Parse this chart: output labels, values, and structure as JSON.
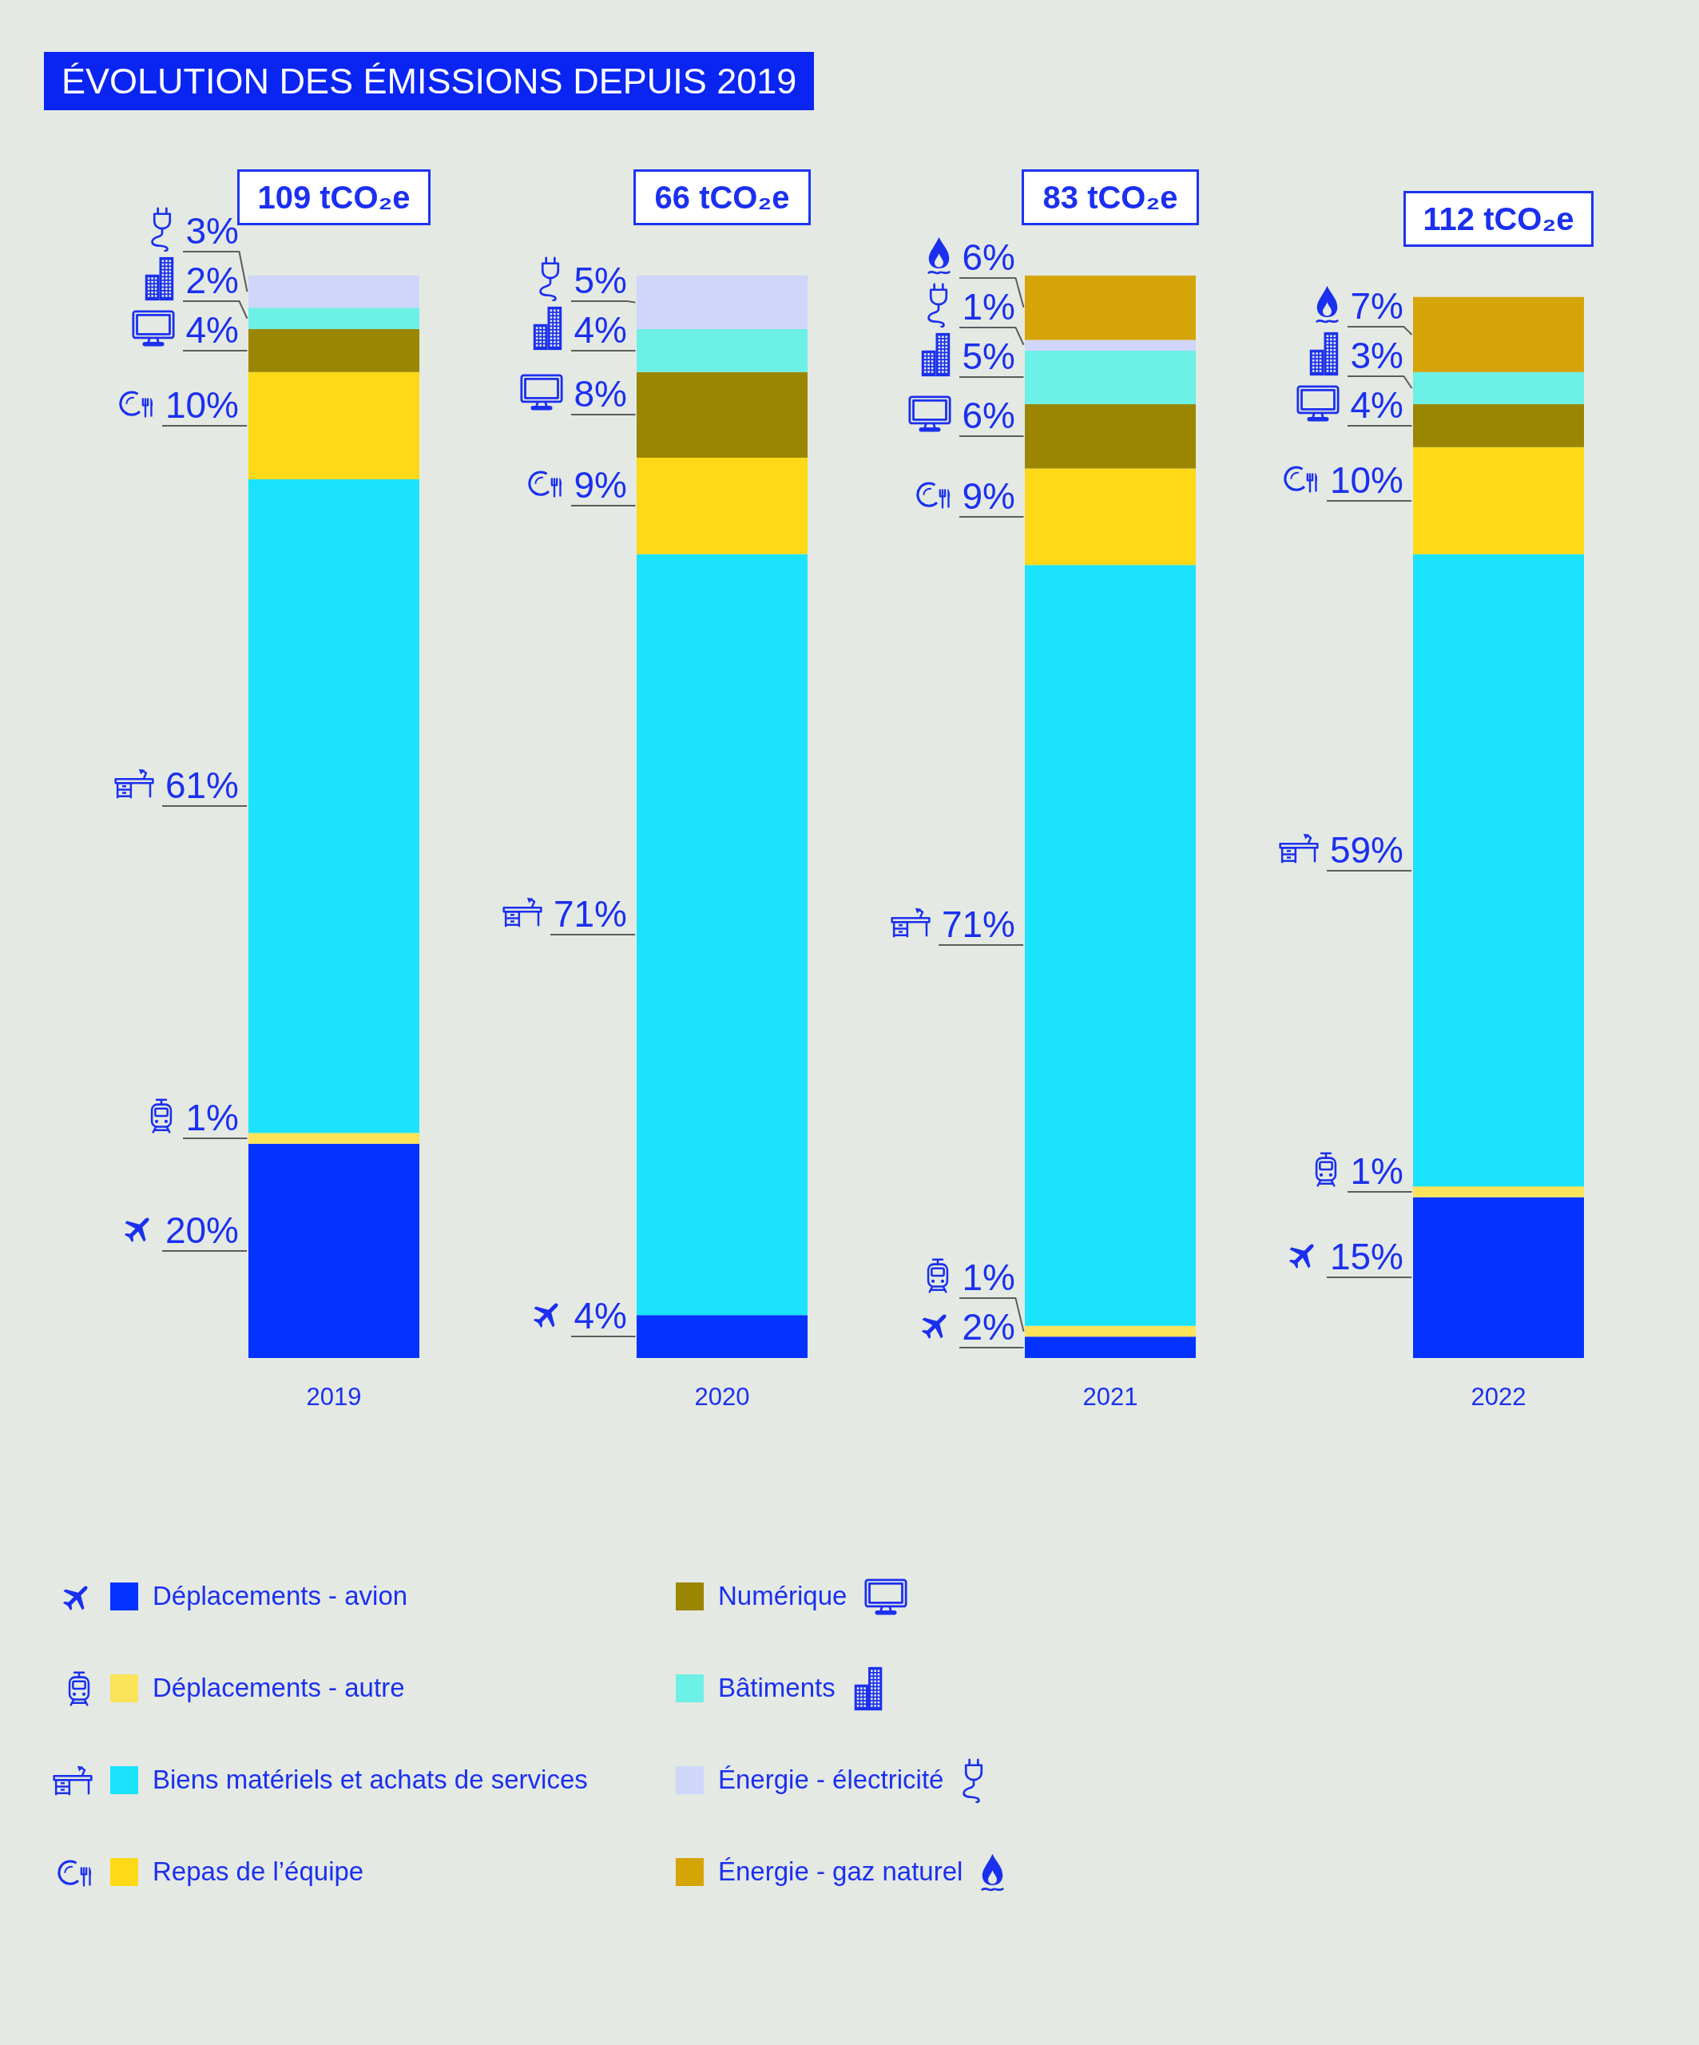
{
  "chart_data": {
    "type": "bar",
    "title": "ÉVOLUTION DES ÉMISSIONS DEPUIS 2019",
    "categories": [
      "2019",
      "2020",
      "2021",
      "2022"
    ],
    "stacked": true,
    "series": [
      {
        "name": "Déplacements - avion",
        "color": "#0433ff",
        "values": [
          20,
          4,
          2,
          15
        ],
        "value_labels": [
          "20%",
          "4%",
          "2%",
          "15%"
        ]
      },
      {
        "name": "Déplacements - autre",
        "color": "#fbe35a",
        "values": [
          1,
          null,
          1,
          1
        ],
        "value_labels": [
          "1%",
          null,
          "1%",
          "1%"
        ]
      },
      {
        "name": "Biens matériels et achats de services",
        "color": "#1be3fd",
        "values": [
          61,
          71,
          71,
          59
        ],
        "value_labels": [
          "61%",
          "71%",
          "71%",
          "59%"
        ]
      },
      {
        "name": "Repas de l’équipe",
        "color": "#fdd917",
        "values": [
          10,
          9,
          9,
          10
        ],
        "value_labels": [
          "10%",
          "9%",
          "9%",
          "10%"
        ]
      },
      {
        "name": "Numérique",
        "color": "#9a8600",
        "values": [
          4,
          8,
          6,
          4
        ],
        "value_labels": [
          "4%",
          "8%",
          "6%",
          "4%"
        ]
      },
      {
        "name": "Bâtiments",
        "color": "#6df0e6",
        "values": [
          2,
          4,
          5,
          3
        ],
        "value_labels": [
          "2%",
          "4%",
          "5%",
          "3%"
        ]
      },
      {
        "name": "Énergie - électricité",
        "color": "#cfd6fa",
        "values": [
          3,
          5,
          1,
          null
        ],
        "value_labels": [
          "3%",
          "5%",
          "1%",
          null
        ]
      },
      {
        "name": "Énergie - gaz naturel",
        "color": "#d5a507",
        "values": [
          null,
          null,
          6,
          7
        ],
        "value_labels": [
          null,
          null,
          "6%",
          "7%"
        ]
      }
    ],
    "annotations": [
      {
        "text": "109 tCO₂e",
        "x": "2019",
        "y": 101
      },
      {
        "text": "66 tCO₂e",
        "x": "2020",
        "y": 101
      },
      {
        "text": "83 tCO₂e",
        "x": "2021",
        "y": 101
      },
      {
        "text": "112 tCO₂e",
        "x": "2022",
        "y": 99
      }
    ],
    "legend": "bottom"
  }
}
